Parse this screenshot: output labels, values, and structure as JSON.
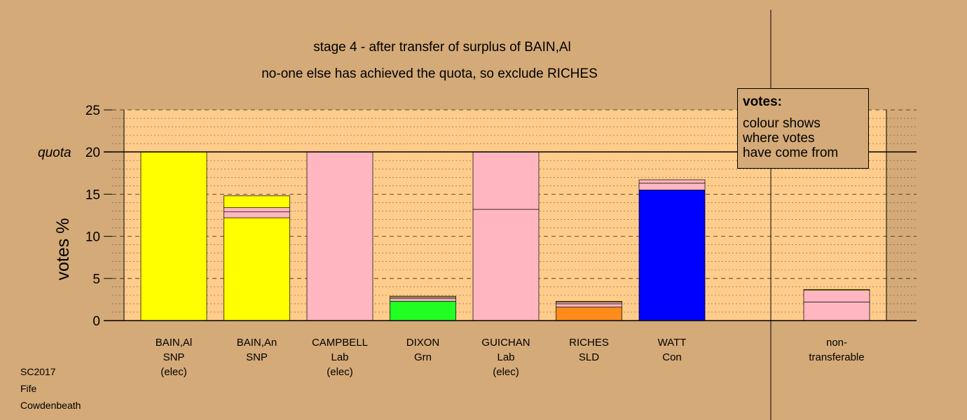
{
  "chart_data": {
    "type": "bar",
    "stacked": true,
    "title": "stage 4 - after transfer of surplus of BAIN,Al",
    "subtitle": "no-one else has achieved the quota, so exclude RICHES",
    "ylabel": "votes %",
    "ylim": [
      0,
      25
    ],
    "yticks": [
      0,
      5,
      10,
      15,
      20,
      25
    ],
    "quota": 20,
    "quota_label": "quota",
    "grid": true,
    "legend": {
      "title": "votes:",
      "lines": [
        "colour shows",
        "where votes",
        "have come from"
      ],
      "placement": "top-right"
    },
    "candidates": [
      {
        "name": "BAIN,Al",
        "party": "SNP",
        "status": "(elec)",
        "color": "#ffff00",
        "segments": [
          {
            "value": 20.0,
            "color": "#ffff00"
          }
        ]
      },
      {
        "name": "BAIN,An",
        "party": "SNP",
        "status": "",
        "color": "#ffff00",
        "segments": [
          {
            "value": 12.2,
            "color": "#ffff00"
          },
          {
            "value": 0.7,
            "color": "#ffb6c1"
          },
          {
            "value": 0.5,
            "color": "#ffb6c1"
          },
          {
            "value": 1.4,
            "color": "#ffff00"
          }
        ]
      },
      {
        "name": "CAMPBELL",
        "party": "Lab",
        "status": "(elec)",
        "color": "#ffb6c1",
        "segments": [
          {
            "value": 20.0,
            "color": "#ffb6c1"
          }
        ]
      },
      {
        "name": "DIXON",
        "party": "Grn",
        "status": "",
        "color": "#22ff22",
        "segments": [
          {
            "value": 2.3,
            "color": "#22ff22"
          },
          {
            "value": 0.3,
            "color": "#ffb6c1"
          },
          {
            "value": 0.2,
            "color": "#ffb6c1"
          },
          {
            "value": 0.1,
            "color": "#ffff00"
          }
        ]
      },
      {
        "name": "GUICHAN",
        "party": "Lab",
        "status": "(elec)",
        "color": "#ffb6c1",
        "segments": [
          {
            "value": 13.2,
            "color": "#ffb6c1"
          },
          {
            "value": 6.8,
            "color": "#ffb6c1"
          }
        ]
      },
      {
        "name": "RICHES",
        "party": "SLD",
        "status": "",
        "color": "#ff8c1a",
        "segments": [
          {
            "value": 1.6,
            "color": "#ff8c1a"
          },
          {
            "value": 0.4,
            "color": "#ffb6c1"
          },
          {
            "value": 0.2,
            "color": "#ffb6c1"
          },
          {
            "value": 0.1,
            "color": "#ffff00"
          }
        ]
      },
      {
        "name": "WATT",
        "party": "Con",
        "status": "",
        "color": "#0000ff",
        "segments": [
          {
            "value": 15.5,
            "color": "#0000ff"
          },
          {
            "value": 0.8,
            "color": "#ffb6c1"
          },
          {
            "value": 0.4,
            "color": "#ffb6c1"
          }
        ]
      }
    ],
    "nontransferable": {
      "label_lines": [
        "non-",
        "transferable"
      ],
      "segments": [
        {
          "value": 2.2,
          "color": "#ffb6c1"
        },
        {
          "value": 1.4,
          "color": "#ffb6c1"
        },
        {
          "value": 0.1,
          "color": "#ffff00"
        }
      ]
    }
  },
  "footer": {
    "line1": "SC2017",
    "line2": "Fife",
    "line3": "Cowdenbeath"
  }
}
